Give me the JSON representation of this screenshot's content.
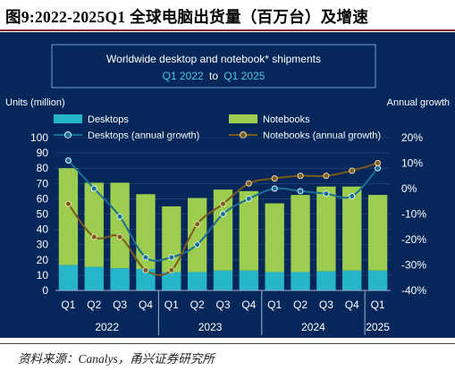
{
  "header": {
    "title": "图9:2022-2025Q1 全球电脑出货量（百万台）及增速"
  },
  "footer": {
    "source": "资料来源：Canalys，甬兴证券研究所"
  },
  "colors": {
    "panel_bg": "#06275a",
    "desktops": "#27b6c9",
    "notebooks": "#9ccd4e",
    "desktops_line": "#1b6f95",
    "notebooks_line": "#7a5a1e",
    "title_box": "#6fa2cf"
  },
  "chart_data": {
    "type": "bar",
    "title_line1": "Worldwide desktop and notebook* shipments",
    "title_line2_start": "Q1 2022",
    "title_line2_mid": "to",
    "title_line2_end": "Q1 2025",
    "ylabel_left": "Units (million)",
    "ylabel_right": "Annual growth",
    "ylim": [
      0,
      100
    ],
    "y_ticks": [
      "0",
      "10",
      "20",
      "30",
      "40",
      "50",
      "60",
      "70",
      "80",
      "90",
      "100"
    ],
    "ylim_right": [
      -40,
      20
    ],
    "y2_ticks": [
      "-40%",
      "-30%",
      "-20%",
      "-10%",
      "0%",
      "10%",
      "20%"
    ],
    "categories": [
      "Q1",
      "Q2",
      "Q3",
      "Q4",
      "Q1",
      "Q2",
      "Q3",
      "Q4",
      "Q1",
      "Q2",
      "Q3",
      "Q4",
      "Q1"
    ],
    "year_groups": [
      {
        "label": "2022",
        "start": 0,
        "end": 3
      },
      {
        "label": "2023",
        "start": 4,
        "end": 7
      },
      {
        "label": "2024",
        "start": 8,
        "end": 11
      },
      {
        "label": "2025",
        "start": 12,
        "end": 12
      }
    ],
    "legend": {
      "desktops": "Desktops",
      "notebooks": "Notebooks",
      "desktops_growth": "Desktops (annual growth)",
      "notebooks_growth": "Notebooks (annual growth)"
    },
    "series": [
      {
        "name": "Desktops",
        "kind": "bar",
        "values": [
          16.5,
          15.5,
          14.5,
          14,
          12,
          12,
          13,
          13,
          12,
          12,
          12.5,
          13,
          13
        ]
      },
      {
        "name": "Notebooks",
        "kind": "bar",
        "stacked_total": [
          80,
          70.5,
          70.5,
          63,
          55,
          60.5,
          66,
          65,
          57,
          62.5,
          68,
          68,
          62.5
        ]
      },
      {
        "name": "Desktops (annual growth)",
        "kind": "line",
        "axis": "right",
        "values": [
          11,
          0,
          -11,
          -27,
          -27,
          -22,
          -10,
          -4,
          0,
          -1,
          -2,
          -3,
          8
        ]
      },
      {
        "name": "Notebooks (annual growth)",
        "kind": "line",
        "axis": "right",
        "values": [
          -6,
          -19,
          -19,
          -32,
          -32,
          -14,
          -6,
          2,
          4,
          5,
          5,
          7,
          10
        ]
      }
    ]
  }
}
